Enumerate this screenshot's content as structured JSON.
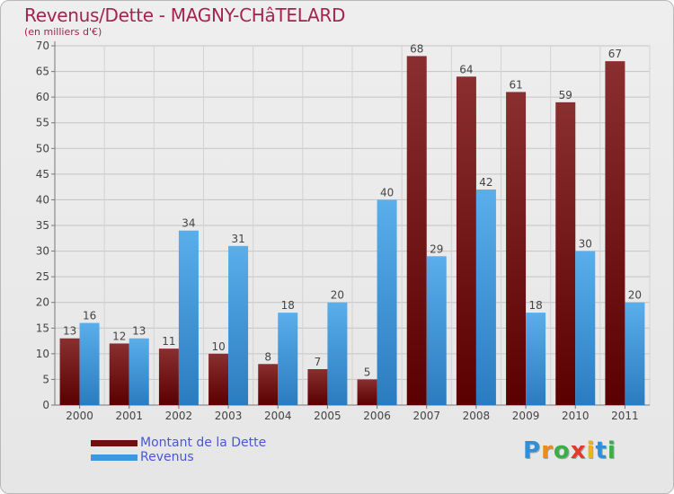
{
  "header": {
    "title": "Revenus/Dette - MAGNY-CHâTELARD",
    "subtitle": "(en milliers d'€)"
  },
  "chart_data": {
    "type": "bar",
    "categories": [
      "2000",
      "2001",
      "2002",
      "2003",
      "2004",
      "2005",
      "2006",
      "2007",
      "2008",
      "2009",
      "2010",
      "2011"
    ],
    "series": [
      {
        "name": "Montant de la Dette",
        "color": "#7d1e1e",
        "values": [
          13,
          12,
          11,
          10,
          8,
          7,
          5,
          68,
          64,
          61,
          59,
          67
        ]
      },
      {
        "name": "Revenus",
        "color": "#4a9fe0",
        "values": [
          16,
          13,
          34,
          31,
          18,
          20,
          40,
          29,
          42,
          18,
          30,
          20
        ]
      }
    ],
    "yticks": [
      0,
      5,
      10,
      15,
      20,
      25,
      30,
      35,
      40,
      45,
      50,
      55,
      60,
      65,
      70
    ],
    "ylim": [
      0,
      70
    ],
    "grid": true,
    "legend_position": "bottom-left"
  },
  "legend": {
    "items": [
      {
        "label": "Montant de la Dette",
        "color": "#7d1e1e"
      },
      {
        "label": "Revenus",
        "color": "#4a9fe0"
      }
    ]
  },
  "brand": {
    "letters": [
      {
        "ch": "P",
        "color": "#2f8fd8"
      },
      {
        "ch": "r",
        "color": "#f08a1c"
      },
      {
        "ch": "o",
        "color": "#3cae45"
      },
      {
        "ch": "x",
        "color": "#e23a2e"
      },
      {
        "ch": "i",
        "color": "#f0b21c"
      },
      {
        "ch": "t",
        "color": "#2f8fd8"
      },
      {
        "ch": "i",
        "color": "#3cae45"
      }
    ]
  }
}
